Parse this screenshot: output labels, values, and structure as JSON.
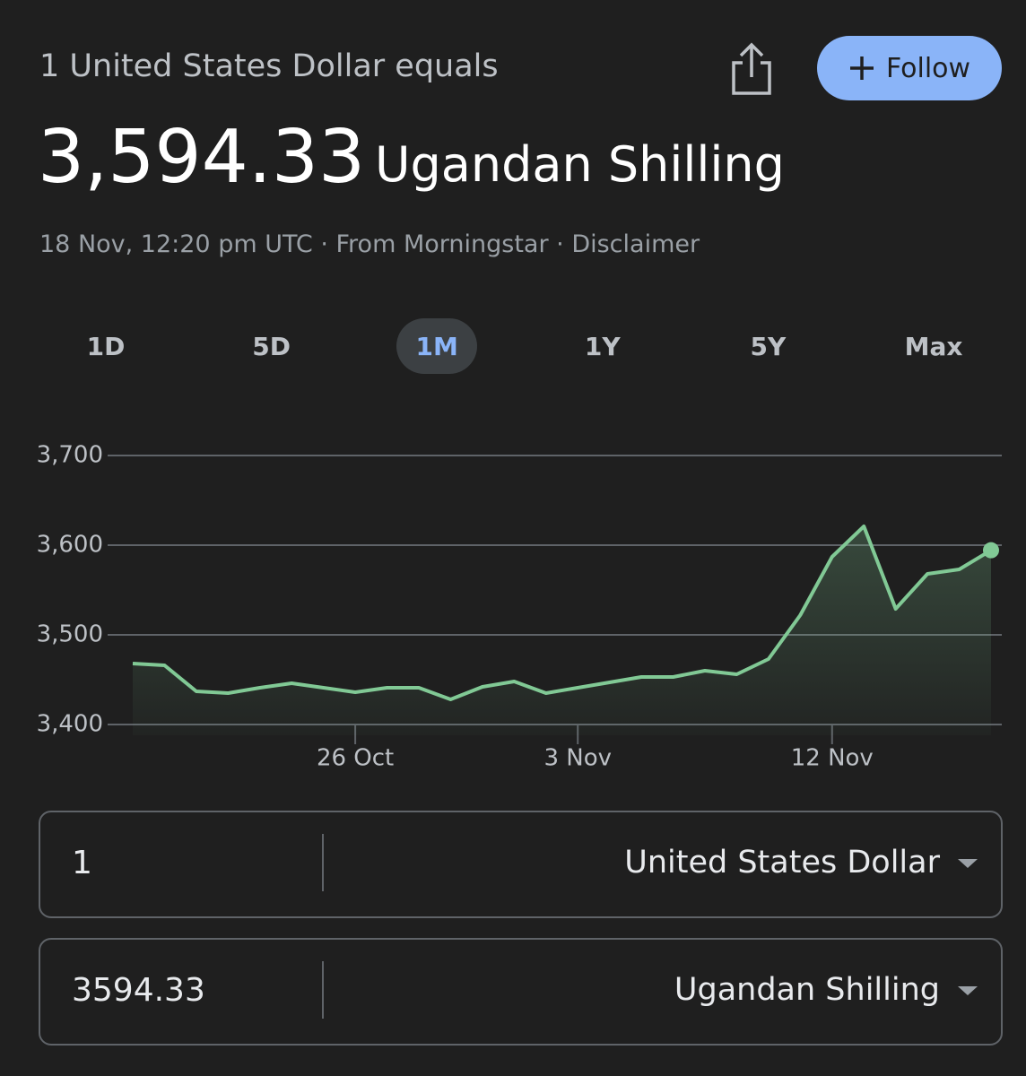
{
  "header": {
    "subtitle": "1 United States Dollar equals",
    "rate": "3,594.33",
    "currency": "Ugandan Shilling",
    "meta": "18 Nov, 12:20 pm UTC · From Morningstar · Disclaimer",
    "follow": "Follow"
  },
  "tabs": [
    "1D",
    "5D",
    "1M",
    "1Y",
    "5Y",
    "Max"
  ],
  "selected_tab": 2,
  "chart_data": {
    "type": "line",
    "categories": [
      null,
      null,
      null,
      null,
      null,
      null,
      null,
      "26 Oct",
      null,
      null,
      null,
      null,
      null,
      null,
      "3 Nov",
      null,
      null,
      null,
      null,
      null,
      null,
      null,
      "12 Nov",
      null,
      null,
      null,
      null,
      null
    ],
    "values": [
      3468,
      3466,
      3437,
      3435,
      3441,
      3446,
      3441,
      3436,
      3441,
      3441,
      3428,
      3442,
      3448,
      3435,
      3441,
      3447,
      3453,
      3453,
      3460,
      3456,
      3473,
      3522,
      3587,
      3621,
      3529,
      3568,
      3573,
      3594.33
    ],
    "color": "#81c995",
    "ylim": [
      3400,
      3700
    ],
    "yticks": [
      {
        "value": 3400,
        "label": "3,400"
      },
      {
        "value": 3500,
        "label": "3,500"
      },
      {
        "value": 3600,
        "label": "3,600"
      },
      {
        "value": 3700,
        "label": "3,700"
      }
    ],
    "grid": true
  },
  "converter": {
    "from": {
      "amount": "1",
      "currency": "United States Dollar"
    },
    "to": {
      "amount": "3594.33",
      "currency": "Ugandan Shilling"
    }
  }
}
